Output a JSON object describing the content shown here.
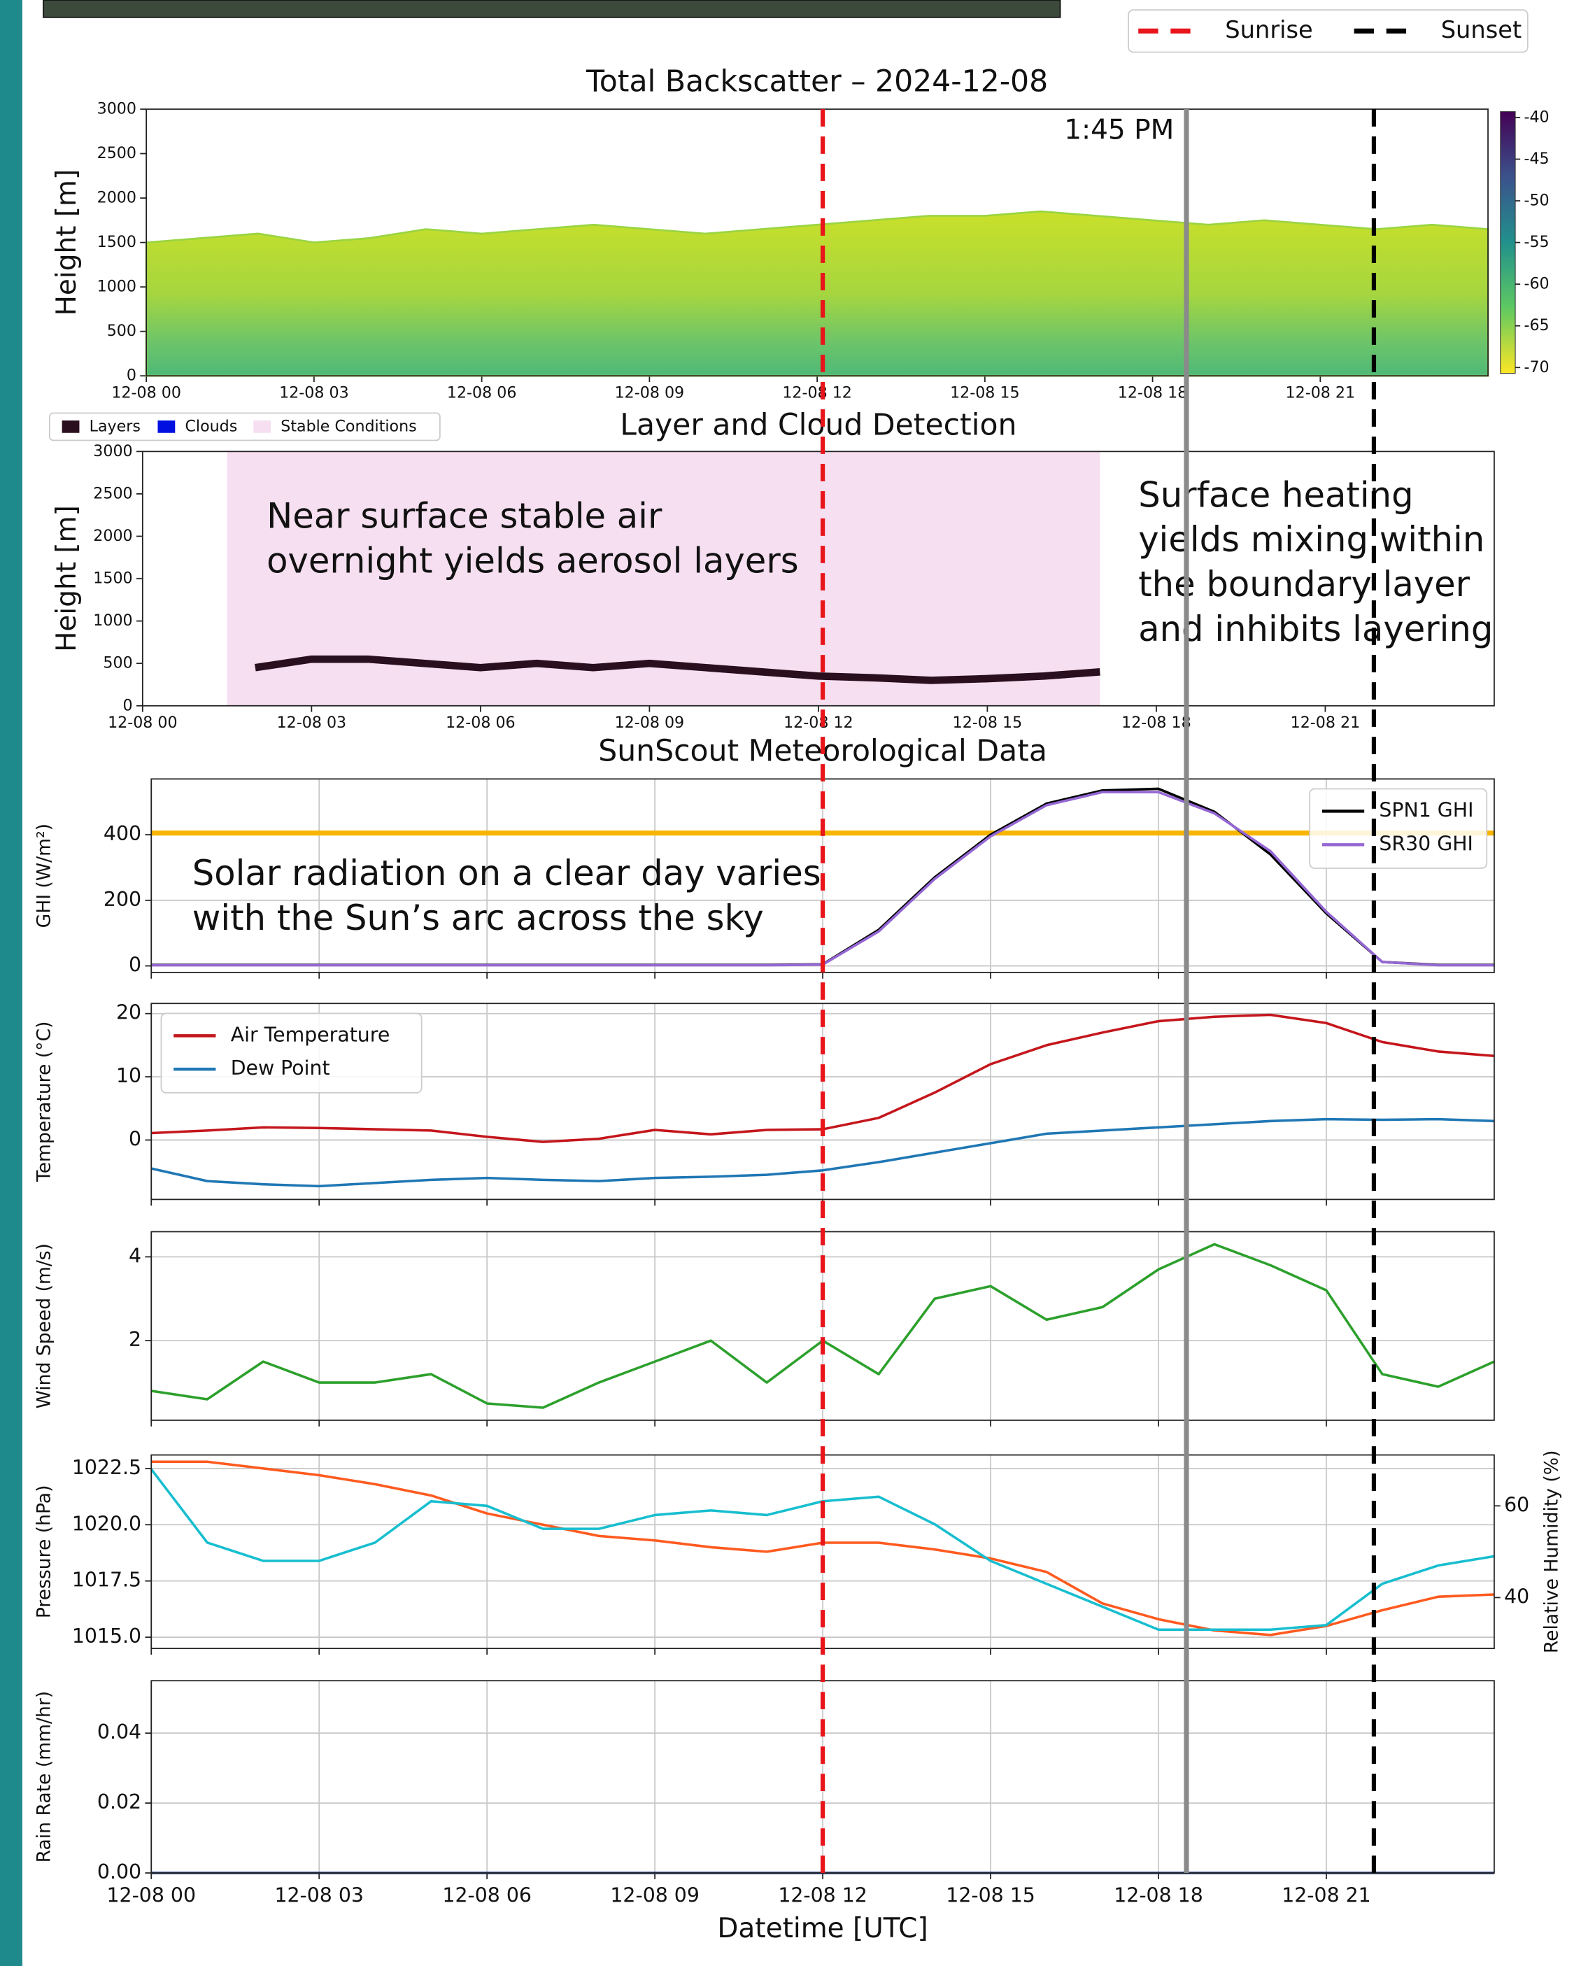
{
  "events": [
    {
      "name": "Sunrise",
      "x": 12.0,
      "color": "#e8151b"
    },
    {
      "name": "Sunset",
      "x": 21.85,
      "color": "#000000"
    }
  ],
  "marker": {
    "x": 18.5,
    "label": "1:45 PM",
    "color": "#8a8a8a"
  },
  "chart_data": [
    {
      "type": "area",
      "title": "Total Backscatter – 2024-12-08",
      "ylabel": "Height [m]",
      "color": "#9ad443",
      "x": [
        0,
        1,
        2,
        3,
        4,
        5,
        6,
        7,
        8,
        9,
        10,
        11,
        12,
        13,
        14,
        15,
        16,
        17,
        18,
        19,
        20,
        21,
        22,
        23,
        24
      ],
      "values": [
        1500,
        1550,
        1600,
        1500,
        1550,
        1650,
        1600,
        1650,
        1700,
        1650,
        1600,
        1650,
        1700,
        1750,
        1800,
        1800,
        1850,
        1800,
        1750,
        1700,
        1750,
        1700,
        1650,
        1700,
        1650
      ],
      "xlim": [
        0,
        24
      ],
      "xticks": [
        {
          "value": 0,
          "label": "12-08 00"
        },
        {
          "value": 3,
          "label": "12-08 03"
        },
        {
          "value": 6,
          "label": "12-08 06"
        },
        {
          "value": 9,
          "label": "12-08 09"
        },
        {
          "value": 12,
          "label": "12-08 12"
        },
        {
          "value": 15,
          "label": "12-08 15"
        },
        {
          "value": 18,
          "label": "12-08 18"
        },
        {
          "value": 21,
          "label": "12-08 21"
        }
      ],
      "ylim": [
        0,
        3000
      ],
      "yticks": [
        0,
        500,
        1000,
        1500,
        2000,
        2500,
        3000
      ],
      "grid": false,
      "colorbar": {
        "lim": [
          -71,
          -39
        ],
        "ticks": [
          -40,
          -45,
          -50,
          -55,
          -60,
          -65,
          -70
        ]
      }
    },
    {
      "type": "line",
      "title": "Layer and Cloud Detection",
      "ylabel": "Height [m]",
      "legend": "above left",
      "x": [
        0,
        1,
        2,
        3,
        4,
        5,
        6,
        7,
        8,
        9,
        10,
        11,
        12,
        13,
        14,
        15,
        16,
        17,
        18,
        19,
        20,
        21,
        22,
        23,
        24
      ],
      "series": [
        {
          "name": "Layers",
          "color": "#2a0f1e",
          "values": [
            null,
            null,
            450,
            550,
            550,
            500,
            450,
            500,
            450,
            500,
            450,
            400,
            350,
            330,
            300,
            320,
            350,
            400,
            null,
            null,
            null,
            null,
            null,
            null,
            null
          ]
        },
        {
          "name": "Clouds",
          "color": "#0010e0",
          "values": [
            null,
            null,
            null,
            null,
            null,
            null,
            null,
            null,
            null,
            null,
            null,
            null,
            null,
            null,
            null,
            null,
            null,
            null,
            null,
            null,
            null,
            null,
            null,
            null,
            null
          ]
        }
      ],
      "spans": [
        {
          "name": "Stable Conditions",
          "color": "#f6dff1",
          "x": [
            1.5,
            17
          ]
        }
      ],
      "annotations": [
        [
          "Near surface stable air",
          "overnight yields aerosol layers"
        ],
        [
          "Surface heating",
          "yields mixing within",
          "the boundary layer",
          "and inhibits layering"
        ]
      ],
      "xlim": [
        0,
        24
      ],
      "xticks": [
        {
          "value": 0,
          "label": "12-08 00"
        },
        {
          "value": 3,
          "label": "12-08 03"
        },
        {
          "value": 6,
          "label": "12-08 06"
        },
        {
          "value": 9,
          "label": "12-08 09"
        },
        {
          "value": 12,
          "label": "12-08 12"
        },
        {
          "value": 15,
          "label": "12-08 15"
        },
        {
          "value": 18,
          "label": "12-08 18"
        },
        {
          "value": 21,
          "label": "12-08 21"
        }
      ],
      "ylim": [
        0,
        3000
      ],
      "yticks": [
        0,
        500,
        1000,
        1500,
        2000,
        2500,
        3000
      ],
      "grid": false
    },
    {
      "type": "line",
      "title": "SunScout Meteorological Data",
      "ylabel": "GHI (W/m²)",
      "legend": "upper right",
      "x": [
        0,
        1,
        2,
        3,
        4,
        5,
        6,
        7,
        8,
        9,
        10,
        11,
        12,
        13,
        14,
        15,
        16,
        17,
        18,
        19,
        20,
        21,
        22,
        23,
        24
      ],
      "series": [
        {
          "name": "SPN1 GHI",
          "color": "#000000",
          "values": [
            3,
            3,
            3,
            3,
            3,
            3,
            3,
            3,
            3,
            3,
            3,
            3,
            5,
            110,
            270,
            400,
            495,
            535,
            540,
            470,
            340,
            160,
            12,
            3,
            3
          ]
        },
        {
          "name": "SR30 GHI",
          "color": "#9467d4",
          "values": [
            2,
            2,
            2,
            2,
            2,
            2,
            2,
            2,
            2,
            2,
            2,
            2,
            4,
            105,
            265,
            395,
            490,
            530,
            530,
            465,
            350,
            165,
            12,
            2,
            2
          ]
        }
      ],
      "hlines": [
        {
          "y": 405,
          "color": "#f7b500"
        }
      ],
      "annotations": [
        [
          "Solar radiation on a clear day varies",
          "with the Sun’s arc across the sky"
        ]
      ],
      "xlim": [
        0,
        24
      ],
      "xticks": [
        0,
        3,
        6,
        9,
        12,
        15,
        18,
        21
      ],
      "ylim": [
        -20,
        570
      ],
      "yticks": [
        0,
        200,
        400
      ],
      "grid": true
    },
    {
      "type": "line",
      "ylabel": "Temperature (°C)",
      "legend": "upper left",
      "x": [
        0,
        1,
        2,
        3,
        4,
        5,
        6,
        7,
        8,
        9,
        10,
        11,
        12,
        13,
        14,
        15,
        16,
        17,
        18,
        19,
        20,
        21,
        22,
        23,
        24
      ],
      "series": [
        {
          "name": "Air Temperature",
          "color": "#c4161c",
          "values": [
            1.1,
            1.5,
            2.0,
            1.9,
            1.7,
            1.5,
            0.5,
            -0.3,
            0.2,
            1.6,
            0.9,
            1.6,
            1.7,
            3.5,
            7.5,
            12,
            15,
            17,
            18.8,
            19.5,
            19.8,
            18.5,
            15.5,
            14,
            13.3
          ]
        },
        {
          "name": "Dew Point",
          "color": "#1f77b4",
          "values": [
            -4.5,
            -6.5,
            -7,
            -7.3,
            -6.8,
            -6.3,
            -6,
            -6.3,
            -6.5,
            -6,
            -5.8,
            -5.5,
            -4.8,
            -3.5,
            -2,
            -0.5,
            1,
            1.5,
            2,
            2.5,
            3,
            3.3,
            3.2,
            3.3,
            3
          ]
        }
      ],
      "xlim": [
        0,
        24
      ],
      "xticks": [
        0,
        3,
        6,
        9,
        12,
        15,
        18,
        21
      ],
      "ylim": [
        -9.4,
        21.6
      ],
      "yticks": [
        0,
        10,
        20
      ],
      "grid": true
    },
    {
      "type": "line",
      "ylabel": "Wind Speed (m/s)",
      "x": [
        0,
        1,
        2,
        3,
        4,
        5,
        6,
        7,
        8,
        9,
        10,
        11,
        12,
        13,
        14,
        15,
        16,
        17,
        18,
        19,
        20,
        21,
        22,
        23,
        24
      ],
      "series": [
        {
          "color": "#2ca02c",
          "values": [
            0.8,
            0.6,
            1.5,
            1.0,
            1.0,
            1.2,
            0.5,
            0.4,
            1.0,
            1.5,
            2.0,
            1.0,
            2.0,
            1.2,
            3.0,
            3.3,
            2.5,
            2.8,
            3.7,
            4.3,
            3.8,
            3.2,
            1.2,
            0.9,
            1.5
          ]
        }
      ],
      "xlim": [
        0,
        24
      ],
      "xticks": [
        0,
        3,
        6,
        9,
        12,
        15,
        18,
        21
      ],
      "ylim": [
        0.1,
        4.6
      ],
      "yticks": [
        2,
        4
      ],
      "grid": true
    },
    {
      "type": "line",
      "ylabel": "Pressure (hPa)",
      "y2label": "Relative Humidity (%)",
      "ylabel_color": "#ff5a1f",
      "y2label_color": "#17becf",
      "x": [
        0,
        1,
        2,
        3,
        4,
        5,
        6,
        7,
        8,
        9,
        10,
        11,
        12,
        13,
        14,
        15,
        16,
        17,
        18,
        19,
        20,
        21,
        22,
        23,
        24
      ],
      "series": [
        {
          "color": "#ff5a1f",
          "values": [
            1022.8,
            1022.8,
            1022.5,
            1022.2,
            1021.8,
            1021.3,
            1020.5,
            1020.0,
            1019.5,
            1019.3,
            1019.0,
            1018.8,
            1019.2,
            1019.2,
            1018.9,
            1018.5,
            1017.9,
            1016.5,
            1015.8,
            1015.3,
            1015.1,
            1015.5,
            1016.2,
            1016.8,
            1016.9
          ]
        },
        {
          "color": "#17becf",
          "axis": "y2",
          "values": [
            68,
            52,
            48,
            48,
            52,
            61,
            60,
            55,
            55,
            58,
            59,
            58,
            61,
            62,
            56,
            48,
            43,
            38,
            33,
            33,
            33,
            34,
            43,
            47,
            49
          ]
        }
      ],
      "xlim": [
        0,
        24
      ],
      "xticks": [
        0,
        3,
        6,
        9,
        12,
        15,
        18,
        21
      ],
      "ylim": [
        1014.5,
        1023.1
      ],
      "yticks": [
        {
          "value": 1015,
          "label": "1015.0"
        },
        1017.5,
        {
          "value": 1020,
          "label": "1020.0"
        },
        1022.5
      ],
      "y2lim": [
        28.9,
        71.1
      ],
      "y2ticks": [
        40,
        60
      ],
      "grid": true
    },
    {
      "type": "line",
      "ylabel": "Rain Rate (mm/hr)",
      "xlabel": "Datetime [UTC]",
      "x": [
        0,
        1,
        2,
        3,
        4,
        5,
        6,
        7,
        8,
        9,
        10,
        11,
        12,
        13,
        14,
        15,
        16,
        17,
        18,
        19,
        20,
        21,
        22,
        23,
        24
      ],
      "series": [
        {
          "color": "#1f3b8c",
          "values": [
            0,
            0,
            0,
            0,
            0,
            0,
            0,
            0,
            0,
            0,
            0,
            0,
            0,
            0,
            0,
            0,
            0,
            0,
            0,
            0,
            0,
            0,
            0,
            0,
            0
          ]
        }
      ],
      "xlim": [
        0,
        24
      ],
      "xticks": [
        {
          "value": 0,
          "label": "12-08 00"
        },
        {
          "value": 3,
          "label": "12-08 03"
        },
        {
          "value": 6,
          "label": "12-08 06"
        },
        {
          "value": 9,
          "label": "12-08 09"
        },
        {
          "value": 12,
          "label": "12-08 12"
        },
        {
          "value": 15,
          "label": "12-08 15"
        },
        {
          "value": 18,
          "label": "12-08 18"
        },
        {
          "value": 21,
          "label": "12-08 21"
        }
      ],
      "ylim": [
        0,
        0.055
      ],
      "yticks": [
        {
          "value": 0,
          "label": "0.00"
        },
        {
          "value": 0.02,
          "label": "0.02"
        },
        {
          "value": 0.04,
          "label": "0.04"
        }
      ],
      "grid": true
    }
  ]
}
